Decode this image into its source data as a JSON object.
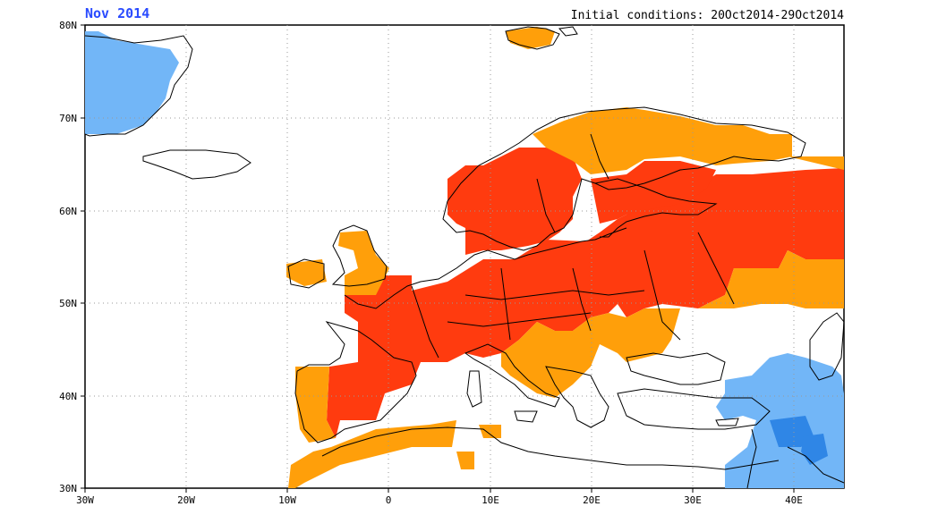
{
  "header": {
    "period": "Nov 2014",
    "initial_conditions": "Initial conditions: 20Oct2014-29Oct2014"
  },
  "map": {
    "lon_range": [
      -30,
      45
    ],
    "lat_range": [
      30,
      80
    ],
    "x_ticks": [
      "30W",
      "20W",
      "10W",
      "0",
      "10E",
      "20E",
      "30E",
      "40E"
    ],
    "y_ticks": [
      "30N",
      "40N",
      "50N",
      "60N",
      "70N",
      "80N"
    ],
    "gridlines": "dotted",
    "colors": {
      "warm_strong": "#ff3b0f",
      "warm": "#ff9f0a",
      "cold": "#72b6f7",
      "cold_strong": "#2f86e6",
      "coast": "#000000",
      "grid": "#9a9a9a",
      "title": "#2a4bff"
    }
  }
}
